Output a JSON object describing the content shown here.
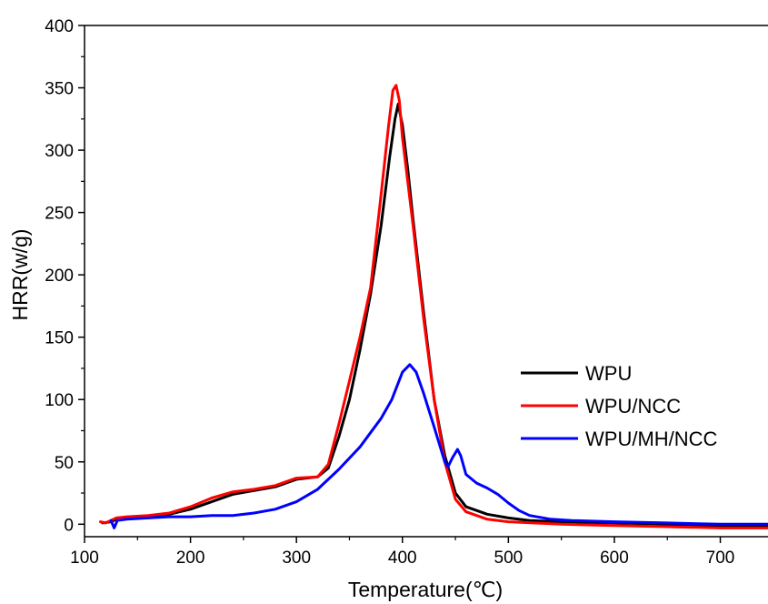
{
  "chart_data": {
    "type": "line",
    "title": "",
    "xlabel": "Temperature(℃)",
    "ylabel": "HRR(w/g)",
    "xlim": [
      100,
      745
    ],
    "ylim": [
      -10,
      400
    ],
    "x_ticks": [
      100,
      200,
      300,
      400,
      500,
      600,
      700
    ],
    "y_ticks": [
      0,
      50,
      100,
      150,
      200,
      250,
      300,
      350,
      400
    ],
    "grid": false,
    "legend_position": "bottom-right",
    "series": [
      {
        "name": "WPU",
        "color": "#000000",
        "points": [
          [
            117,
            1
          ],
          [
            125,
            2
          ],
          [
            130,
            4
          ],
          [
            140,
            5
          ],
          [
            160,
            6
          ],
          [
            180,
            8
          ],
          [
            200,
            12
          ],
          [
            220,
            18
          ],
          [
            240,
            24
          ],
          [
            260,
            27
          ],
          [
            280,
            30
          ],
          [
            300,
            36
          ],
          [
            320,
            38
          ],
          [
            330,
            45
          ],
          [
            340,
            70
          ],
          [
            350,
            100
          ],
          [
            360,
            140
          ],
          [
            370,
            185
          ],
          [
            380,
            240
          ],
          [
            388,
            295
          ],
          [
            393,
            325
          ],
          [
            396,
            337
          ],
          [
            400,
            320
          ],
          [
            405,
            285
          ],
          [
            410,
            245
          ],
          [
            420,
            170
          ],
          [
            430,
            100
          ],
          [
            440,
            55
          ],
          [
            450,
            25
          ],
          [
            460,
            14
          ],
          [
            480,
            8
          ],
          [
            500,
            5
          ],
          [
            520,
            3
          ],
          [
            550,
            2
          ],
          [
            600,
            1
          ],
          [
            650,
            0
          ],
          [
            700,
            -1
          ],
          [
            745,
            -1
          ]
        ]
      },
      {
        "name": "WPU/NCC",
        "color": "#ff0000",
        "points": [
          [
            115,
            2
          ],
          [
            120,
            1
          ],
          [
            125,
            3
          ],
          [
            130,
            5
          ],
          [
            140,
            6
          ],
          [
            160,
            7
          ],
          [
            180,
            9
          ],
          [
            200,
            14
          ],
          [
            220,
            21
          ],
          [
            240,
            26
          ],
          [
            260,
            28
          ],
          [
            280,
            31
          ],
          [
            300,
            37
          ],
          [
            320,
            38
          ],
          [
            330,
            48
          ],
          [
            340,
            80
          ],
          [
            350,
            115
          ],
          [
            360,
            150
          ],
          [
            370,
            190
          ],
          [
            380,
            265
          ],
          [
            387,
            320
          ],
          [
            391,
            348
          ],
          [
            394,
            352
          ],
          [
            397,
            340
          ],
          [
            400,
            310
          ],
          [
            405,
            275
          ],
          [
            410,
            240
          ],
          [
            420,
            165
          ],
          [
            430,
            100
          ],
          [
            440,
            50
          ],
          [
            450,
            20
          ],
          [
            460,
            10
          ],
          [
            480,
            4
          ],
          [
            500,
            2
          ],
          [
            550,
            0
          ],
          [
            600,
            -1
          ],
          [
            650,
            -2
          ],
          [
            700,
            -3
          ],
          [
            745,
            -3
          ]
        ]
      },
      {
        "name": "WPU/MH/NCC",
        "color": "#0000ff",
        "points": [
          [
            125,
            3
          ],
          [
            128,
            -3
          ],
          [
            131,
            3
          ],
          [
            140,
            4
          ],
          [
            160,
            5
          ],
          [
            180,
            6
          ],
          [
            200,
            6
          ],
          [
            220,
            7
          ],
          [
            240,
            7
          ],
          [
            260,
            9
          ],
          [
            280,
            12
          ],
          [
            300,
            18
          ],
          [
            320,
            28
          ],
          [
            340,
            44
          ],
          [
            360,
            62
          ],
          [
            380,
            85
          ],
          [
            390,
            100
          ],
          [
            400,
            122
          ],
          [
            407,
            128
          ],
          [
            413,
            122
          ],
          [
            420,
            105
          ],
          [
            430,
            78
          ],
          [
            440,
            50
          ],
          [
            443,
            46
          ],
          [
            447,
            53
          ],
          [
            452,
            60
          ],
          [
            455,
            55
          ],
          [
            460,
            40
          ],
          [
            470,
            33
          ],
          [
            480,
            29
          ],
          [
            490,
            24
          ],
          [
            500,
            17
          ],
          [
            510,
            11
          ],
          [
            520,
            7
          ],
          [
            540,
            4
          ],
          [
            560,
            3
          ],
          [
            600,
            2
          ],
          [
            650,
            1
          ],
          [
            700,
            0
          ],
          [
            745,
            0
          ]
        ]
      }
    ]
  }
}
